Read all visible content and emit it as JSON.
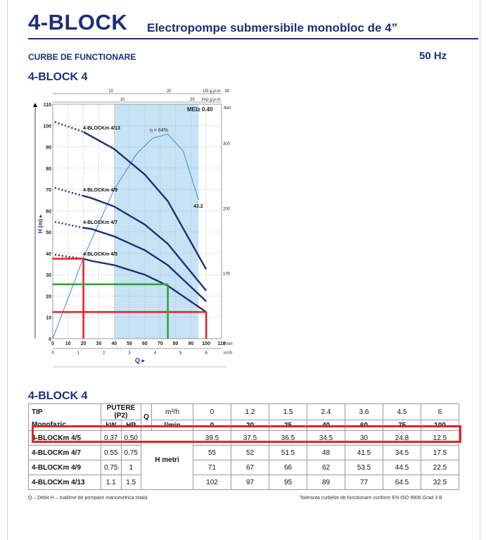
{
  "header": {
    "brand": "4-BLOCK",
    "subtitle": "Electropompe submersibile monobloc de 4”",
    "section": "CURBE DE FUNCTIONARE",
    "frequency": "50 Hz",
    "model_title": "4-BLOCK 4",
    "model_title_table": "4-BLOCK 4"
  },
  "chart_data": {
    "type": "line",
    "xlabel": "Q",
    "ylabel": "H (m)",
    "x_unit_lmin": "l/min",
    "x_unit_m3h": "m³/h",
    "top_unit_usgpm": "US g.p.m.",
    "top_unit_impgpm": "Imp g.p.m.",
    "right_unit": "feet",
    "mei_label": "MEI≥ 0.40",
    "eff_label": "η = 64%",
    "eff_end_label": "43.2",
    "xlim": [
      0,
      110
    ],
    "ylim": [
      0,
      110
    ],
    "x_ticks": [
      "0",
      "10",
      "20",
      "30",
      "40",
      "50",
      "60",
      "70",
      "80",
      "90",
      "100",
      "110"
    ],
    "y_ticks": [
      "0",
      "10",
      "20",
      "30",
      "40",
      "50",
      "60",
      "70",
      "80",
      "90",
      "100",
      "110"
    ],
    "m3h_ticks": [
      "0",
      "1",
      "2",
      "3",
      "4",
      "5",
      "6"
    ],
    "usgpm_ticks": [
      "10",
      "20",
      "30"
    ],
    "impgpm_ticks": [
      "10",
      "20"
    ],
    "feet_ticks": [
      "100",
      "200",
      "300"
    ],
    "preferred_range": [
      40,
      95
    ],
    "series": [
      {
        "name": "4-BLOCKm 4/13",
        "x": [
          0,
          20,
          25,
          40,
          60,
          75,
          100
        ],
        "y": [
          102,
          97,
          95,
          89,
          77,
          64.5,
          32.5
        ]
      },
      {
        "name": "4-BLOCKm 4/9",
        "x": [
          0,
          20,
          25,
          40,
          60,
          75,
          100
        ],
        "y": [
          71,
          67,
          66,
          62,
          53.5,
          44.5,
          22.5
        ]
      },
      {
        "name": "4-BLOCKm 4/7",
        "x": [
          0,
          20,
          25,
          40,
          60,
          75,
          100
        ],
        "y": [
          55,
          52,
          51.5,
          48,
          41.5,
          34.5,
          17.5
        ]
      },
      {
        "name": "4-BLOCKm 4/5",
        "x": [
          0,
          20,
          25,
          40,
          60,
          75,
          100
        ],
        "y": [
          39.5,
          37.5,
          36.5,
          34.5,
          30,
          24.8,
          12.5
        ]
      }
    ],
    "efficiency_curve": {
      "x": [
        0,
        20,
        40,
        55,
        65,
        75,
        85,
        95
      ],
      "y": [
        0,
        38,
        70,
        87,
        94,
        96,
        88,
        65
      ]
    },
    "highlight_red": [
      {
        "x": 20,
        "y": 37.5
      },
      {
        "x": 100,
        "y": 12.5
      }
    ],
    "highlight_green": [
      {
        "x": 75,
        "y": 25.5
      }
    ]
  },
  "table": {
    "col_tip": "TIP",
    "col_monofazic": "Monofazic",
    "col_putere": "PUTERE (P2)",
    "col_kw": "kW",
    "col_hp": "HP",
    "col_q": "Q",
    "unit_m3h": "m³/h",
    "unit_lmin": "l/min",
    "h_label": "H metri",
    "q_m3h": [
      "0",
      "1.2",
      "1.5",
      "2.4",
      "3.6",
      "4.5",
      "6"
    ],
    "q_lmin": [
      "0",
      "20",
      "25",
      "40",
      "60",
      "75",
      "100"
    ],
    "rows": [
      {
        "model": "4-BLOCKm 4/5",
        "kw": "0.37",
        "hp": "0.50",
        "h": [
          "39.5",
          "37.5",
          "36.5",
          "34.5",
          "30",
          "24.8",
          "12.5"
        ]
      },
      {
        "model": "4-BLOCKm 4/7",
        "kw": "0.55",
        "hp": "0.75",
        "h": [
          "55",
          "52",
          "51.5",
          "48",
          "41.5",
          "34.5",
          "17.5"
        ]
      },
      {
        "model": "4-BLOCKm 4/9",
        "kw": "0.75",
        "hp": "1",
        "h": [
          "71",
          "67",
          "66",
          "62",
          "53.5",
          "44.5",
          "22.5"
        ]
      },
      {
        "model": "4-BLOCKm 4/13",
        "kw": "1.1",
        "hp": "1.5",
        "h": [
          "102",
          "97",
          "95",
          "89",
          "77",
          "64.5",
          "32.5"
        ]
      }
    ]
  },
  "footer": {
    "left": "Q – Debit H – Inaltime de pompare manometrica totala",
    "right": "Toleranta curbelor de functionare conform EN ISO 9906 Grad 3 B"
  }
}
